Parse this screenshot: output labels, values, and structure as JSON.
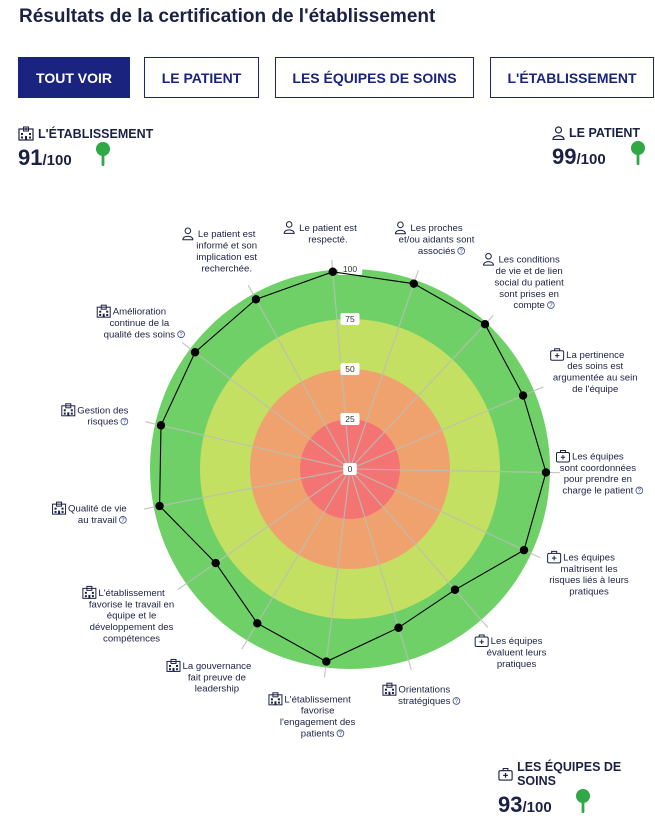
{
  "page": {
    "title": "Résultats de la certification de l'établissement"
  },
  "tabs": [
    {
      "label": "TOUT VOIR",
      "active": true
    },
    {
      "label": "LE PATIENT",
      "active": false
    },
    {
      "label": "LES ÉQUIPES DE SOINS",
      "active": false
    },
    {
      "label": "L'ÉTABLISSEMENT",
      "active": false
    }
  ],
  "scores": {
    "etablissement": {
      "label": "L'ÉTABLISSEMENT",
      "value": "91",
      "denominator": "/100",
      "icon": "building-icon"
    },
    "patient": {
      "label": "LE PATIENT",
      "value": "99",
      "denominator": "/100",
      "icon": "person-icon"
    },
    "equipes": {
      "label": "LES ÉQUIPES DE SOINS",
      "value": "93",
      "denominator": "/100",
      "icon": "medical-kit-icon"
    }
  },
  "chart_data": {
    "type": "radar",
    "range": [
      0,
      100
    ],
    "ticks": [
      "0",
      "25",
      "50",
      "75",
      "100"
    ],
    "bands": [
      {
        "from": 0,
        "to": 25,
        "color": "#f47373"
      },
      {
        "from": 25,
        "to": 50,
        "color": "#f0a26e"
      },
      {
        "from": 50,
        "to": 75,
        "color": "#c3e063"
      },
      {
        "from": 75,
        "to": 100,
        "color": "#6fd068"
      }
    ],
    "point_color": "#000000",
    "axes": [
      {
        "lines": [
          "Le patient est",
          "respecté."
        ],
        "category": "patient",
        "value": 99,
        "help": false
      },
      {
        "lines": [
          "Les proches",
          "et/ou aidants sont",
          "associés"
        ],
        "category": "patient",
        "value": 98,
        "help": true
      },
      {
        "lines": [
          "Les conditions",
          "de vie et de lien",
          "social du patient",
          "sont prises en",
          "compte"
        ],
        "category": "patient",
        "value": 99,
        "help": true
      },
      {
        "lines": [
          "La pertinence",
          "des soins est",
          "argumentée au sein",
          "de l'équipe"
        ],
        "category": "equipes",
        "value": 94,
        "help": false
      },
      {
        "lines": [
          "Les équipes",
          "sont coordonnées",
          "pour prendre en",
          "charge le patient"
        ],
        "category": "equipes",
        "value": 98,
        "help": true
      },
      {
        "lines": [
          "Les équipes",
          "maîtrisent les",
          "risques liés à leurs",
          "pratiques"
        ],
        "category": "equipes",
        "value": 96,
        "help": false
      },
      {
        "lines": [
          "Les équipes",
          "évaluent leurs",
          "pratiques"
        ],
        "category": "equipes",
        "value": 80,
        "help": false
      },
      {
        "lines": [
          "Orientations",
          "stratégiques"
        ],
        "category": "etablissement",
        "value": 83,
        "help": true
      },
      {
        "lines": [
          "L'établissement",
          "favorise",
          "l'engagement des",
          "patients"
        ],
        "category": "etablissement",
        "value": 97,
        "help": true
      },
      {
        "lines": [
          "La gouvernance",
          "fait preuve de",
          "leadership"
        ],
        "category": "etablissement",
        "value": 90,
        "help": false
      },
      {
        "lines": [
          "L'établissement",
          "favorise le travail en",
          "équipe et le",
          "développement des",
          "compétences"
        ],
        "category": "etablissement",
        "value": 82,
        "help": false
      },
      {
        "lines": [
          "Qualité de vie",
          "au travail"
        ],
        "category": "etablissement",
        "value": 97,
        "help": true
      },
      {
        "lines": [
          "Gestion des",
          "risques"
        ],
        "category": "etablissement",
        "value": 97,
        "help": true
      },
      {
        "lines": [
          "Amélioration",
          "continue de la",
          "qualité des soins"
        ],
        "category": "etablissement",
        "value": 97,
        "help": true
      },
      {
        "lines": [
          "Le patient est",
          "informé et son",
          "implication est",
          "recherchée."
        ],
        "category": "patient",
        "value": 97,
        "help": false
      }
    ]
  }
}
